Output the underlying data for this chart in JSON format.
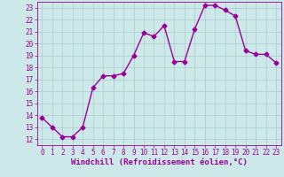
{
  "x": [
    0,
    1,
    2,
    3,
    4,
    5,
    6,
    7,
    8,
    9,
    10,
    11,
    12,
    13,
    14,
    15,
    16,
    17,
    18,
    19,
    20,
    21,
    22,
    23
  ],
  "y": [
    13.8,
    13.0,
    12.2,
    12.2,
    13.0,
    16.3,
    17.3,
    17.3,
    17.5,
    19.0,
    20.9,
    20.6,
    21.5,
    18.5,
    18.5,
    21.2,
    23.2,
    23.2,
    22.8,
    22.3,
    19.4,
    19.1,
    19.1,
    18.4
  ],
  "color": "#990099",
  "bg_color": "#cce8e8",
  "grid_color": "#aacccc",
  "xlabel": "Windchill (Refroidissement éolien,°C)",
  "xlim": [
    -0.5,
    23.5
  ],
  "ylim": [
    11.5,
    23.5
  ],
  "yticks": [
    12,
    13,
    14,
    15,
    16,
    17,
    18,
    19,
    20,
    21,
    22,
    23
  ],
  "xticks": [
    0,
    1,
    2,
    3,
    4,
    5,
    6,
    7,
    8,
    9,
    10,
    11,
    12,
    13,
    14,
    15,
    16,
    17,
    18,
    19,
    20,
    21,
    22,
    23
  ],
  "marker": "D",
  "markersize": 2.5,
  "linewidth": 1.0,
  "xlabel_fontsize": 6.5,
  "tick_fontsize": 5.5
}
